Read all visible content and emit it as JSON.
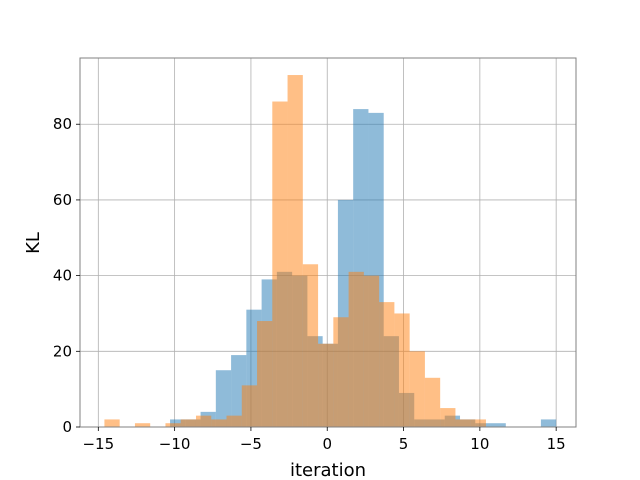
{
  "chart_data": {
    "type": "histogram",
    "xlabel": "iteration",
    "ylabel": "KL",
    "xlim": [
      -16.2,
      16.3
    ],
    "ylim": [
      0,
      97.5
    ],
    "xticks": [
      -15,
      -10,
      -5,
      0,
      5,
      10,
      15
    ],
    "yticks": [
      0,
      20,
      40,
      60,
      80
    ],
    "grid": true,
    "series": [
      {
        "color": "#1f77b4",
        "opacity": 0.5,
        "bins": [
          {
            "x0": -10.3,
            "x1": -9.3,
            "count": 2
          },
          {
            "x0": -9.3,
            "x1": -8.3,
            "count": 2
          },
          {
            "x0": -8.3,
            "x1": -7.3,
            "count": 4
          },
          {
            "x0": -7.3,
            "x1": -6.3,
            "count": 15
          },
          {
            "x0": -6.3,
            "x1": -5.3,
            "count": 19
          },
          {
            "x0": -5.3,
            "x1": -4.3,
            "count": 31
          },
          {
            "x0": -4.3,
            "x1": -3.3,
            "count": 39
          },
          {
            "x0": -3.3,
            "x1": -2.3,
            "count": 41
          },
          {
            "x0": -2.3,
            "x1": -1.3,
            "count": 40
          },
          {
            "x0": -1.3,
            "x1": -0.3,
            "count": 24
          },
          {
            "x0": -0.3,
            "x1": 0.7,
            "count": 22
          },
          {
            "x0": 0.7,
            "x1": 1.7,
            "count": 60
          },
          {
            "x0": 1.7,
            "x1": 2.7,
            "count": 84
          },
          {
            "x0": 2.7,
            "x1": 3.7,
            "count": 83
          },
          {
            "x0": 3.7,
            "x1": 4.7,
            "count": 24
          },
          {
            "x0": 4.7,
            "x1": 5.7,
            "count": 9
          },
          {
            "x0": 5.7,
            "x1": 6.7,
            "count": 2
          },
          {
            "x0": 6.7,
            "x1": 7.7,
            "count": 2
          },
          {
            "x0": 7.7,
            "x1": 8.7,
            "count": 3
          },
          {
            "x0": 8.7,
            "x1": 9.7,
            "count": 2
          },
          {
            "x0": 9.7,
            "x1": 10.7,
            "count": 1
          },
          {
            "x0": 10.7,
            "x1": 11.7,
            "count": 1
          },
          {
            "x0": 14.0,
            "x1": 15.0,
            "count": 2
          }
        ]
      },
      {
        "color": "#ff7f0e",
        "opacity": 0.5,
        "bins": [
          {
            "x0": -14.6,
            "x1": -13.6,
            "count": 2
          },
          {
            "x0": -12.6,
            "x1": -11.6,
            "count": 1
          },
          {
            "x0": -10.6,
            "x1": -9.6,
            "count": 1
          },
          {
            "x0": -9.6,
            "x1": -8.6,
            "count": 2
          },
          {
            "x0": -8.6,
            "x1": -7.6,
            "count": 3
          },
          {
            "x0": -7.6,
            "x1": -6.6,
            "count": 2
          },
          {
            "x0": -6.6,
            "x1": -5.6,
            "count": 3
          },
          {
            "x0": -5.6,
            "x1": -4.6,
            "count": 11
          },
          {
            "x0": -4.6,
            "x1": -3.6,
            "count": 28
          },
          {
            "x0": -3.6,
            "x1": -2.6,
            "count": 86
          },
          {
            "x0": -2.6,
            "x1": -1.6,
            "count": 93
          },
          {
            "x0": -1.6,
            "x1": -0.6,
            "count": 43
          },
          {
            "x0": -0.6,
            "x1": 0.4,
            "count": 22
          },
          {
            "x0": 0.4,
            "x1": 1.4,
            "count": 29
          },
          {
            "x0": 1.4,
            "x1": 2.4,
            "count": 41
          },
          {
            "x0": 2.4,
            "x1": 3.4,
            "count": 40
          },
          {
            "x0": 3.4,
            "x1": 4.4,
            "count": 33
          },
          {
            "x0": 4.4,
            "x1": 5.4,
            "count": 30
          },
          {
            "x0": 5.4,
            "x1": 6.4,
            "count": 20
          },
          {
            "x0": 6.4,
            "x1": 7.4,
            "count": 13
          },
          {
            "x0": 7.4,
            "x1": 8.4,
            "count": 5
          },
          {
            "x0": 8.4,
            "x1": 9.4,
            "count": 2
          },
          {
            "x0": 9.4,
            "x1": 10.4,
            "count": 2
          }
        ]
      }
    ]
  }
}
